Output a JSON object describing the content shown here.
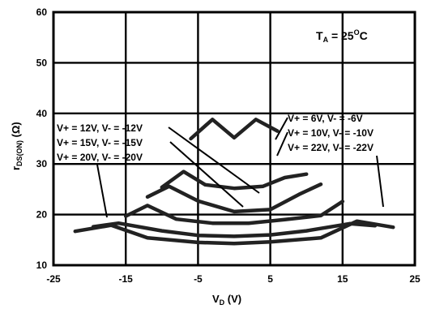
{
  "chart_data": {
    "type": "line",
    "xlabel": "V",
    "xlabel_sub": "D",
    "xlabel_unit": " (V)",
    "ylabel": "r",
    "ylabel_sub": "DS(ON)",
    "ylabel_unit": " (Ω)",
    "xlim": [
      -25,
      25
    ],
    "ylim": [
      10,
      60
    ],
    "x_tick_labels": [
      "-25",
      "-15",
      "-5",
      "5",
      "15",
      "25"
    ],
    "y_tick_labels": [
      "10",
      "20",
      "30",
      "40",
      "50",
      "60"
    ],
    "annotation": {
      "t": "T",
      "t_sub": "A",
      "rest": " = 25",
      "sup": "O",
      "unit": "C"
    },
    "grid": true,
    "series": [
      {
        "name": "V+ = 6V, V- = -6V",
        "x": [
          -6,
          -3,
          0,
          3,
          6
        ],
        "y": [
          35.0,
          38.8,
          35.2,
          38.8,
          36.5
        ]
      },
      {
        "name": "V+ = 10V, V- = -10V",
        "x": [
          -10,
          -7,
          -4,
          0,
          4,
          7,
          10
        ],
        "y": [
          25.4,
          28.5,
          25.9,
          25.2,
          25.6,
          27.3,
          28.0
        ]
      },
      {
        "name": "V+ = 12V, V- = -12V",
        "x": [
          -12,
          -9,
          -5,
          0,
          5,
          9,
          12
        ],
        "y": [
          23.5,
          25.6,
          22.7,
          20.6,
          21.0,
          24.0,
          26.0
        ]
      },
      {
        "name": "V+ = 15V, V- = -15V",
        "x": [
          -15,
          -12,
          -8,
          -3,
          2,
          7,
          12,
          15
        ],
        "y": [
          19.7,
          21.8,
          19.1,
          18.3,
          18.3,
          19.0,
          19.8,
          22.6
        ]
      },
      {
        "name": "V+ = 20V, V- = -20V",
        "x": [
          -19.5,
          -16,
          -10,
          -5,
          0,
          5,
          10,
          16,
          19.5
        ],
        "y": [
          17.6,
          18.3,
          16.8,
          15.9,
          15.7,
          16.0,
          16.8,
          18.2,
          17.8
        ]
      },
      {
        "name": "V+ = 22V, V- = -22V",
        "x": [
          -22,
          -17,
          -12,
          -5,
          0,
          5,
          12,
          17,
          22
        ],
        "y": [
          16.7,
          17.9,
          15.4,
          14.5,
          14.3,
          14.6,
          15.4,
          18.7,
          17.5
        ]
      }
    ],
    "labels_left": [
      "V+ = 12V, V- = -12V",
      "V+ = 15V, V- = -15V",
      "V+ = 20V, V- = -20V"
    ],
    "labels_right": [
      "V+ = 6V, V- = -6V",
      "V+ = 10V, V- = -10V",
      "V+ = 22V, V- = -22V"
    ]
  }
}
